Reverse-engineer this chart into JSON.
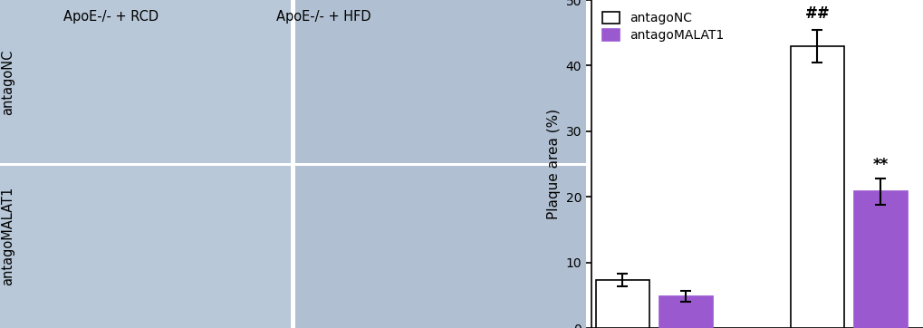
{
  "groups": [
    "ApoE-/- + RCD",
    "ApoE-/- + HFD"
  ],
  "series": [
    "antagoNC",
    "antagoMALAT1"
  ],
  "values": [
    [
      7.3,
      4.8
    ],
    [
      43.0,
      20.8
    ]
  ],
  "errors": [
    [
      1.0,
      0.8
    ],
    [
      2.5,
      2.0
    ]
  ],
  "bar_colors": [
    "#ffffff",
    "#9b59d0"
  ],
  "bar_edgecolors": [
    "#000000",
    "#9b59d0"
  ],
  "ylabel": "Plaque area (%)",
  "ylim": [
    0,
    50
  ],
  "yticks": [
    0,
    10,
    20,
    30,
    40,
    50
  ],
  "annotations": {
    "hfd_nc": "##",
    "hfd_malat1": "**"
  },
  "legend_labels": [
    "antagoNC",
    "antagoMALAT1"
  ],
  "legend_colors": [
    "#ffffff",
    "#9b59d0"
  ],
  "legend_edgecolors": [
    "#000000",
    "#9b59d0"
  ],
  "bar_width": 0.32,
  "figsize": [
    10.2,
    3.62
  ],
  "dpi": 100,
  "background_color": "#ffffff",
  "fontsize": 11,
  "annotation_fontsize": 12,
  "row_labels": [
    "antagoNC",
    "antagoMALAT1"
  ],
  "col_labels": [
    "ApoE-/- + RCD",
    "ApoE-/- + HFD"
  ],
  "photo_bg_colors": [
    [
      "#c8d8e8",
      "#c8d8e8"
    ],
    [
      "#c8d8e8",
      "#c8d8e8"
    ]
  ]
}
